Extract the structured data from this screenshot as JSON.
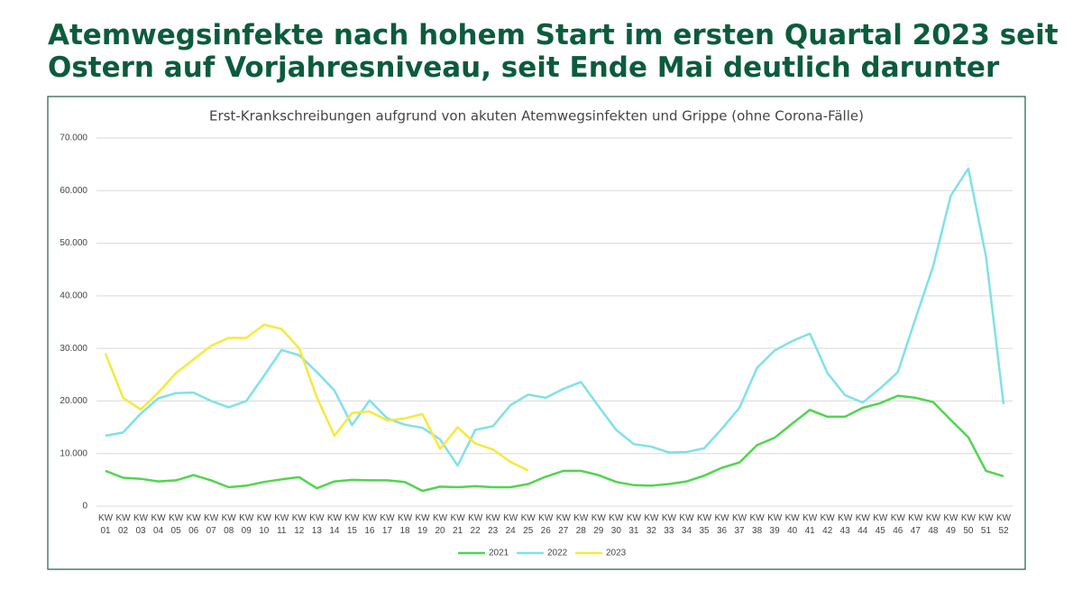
{
  "headline": "Atemwegsinfekte nach hohem Start im ersten Quartal 2023 seit Ostern auf Vorjahresniveau, seit Ende Mai deutlich darunter",
  "chart_data": {
    "type": "line",
    "title": "Erst-Krankschreibungen aufgrund von akuten Atemwegsinfekten und Grippe (ohne Corona-Fälle)",
    "categories": [
      "KW 01",
      "KW 02",
      "KW 03",
      "KW 04",
      "KW 05",
      "KW 06",
      "KW 07",
      "KW 08",
      "KW 09",
      "KW 10",
      "KW 11",
      "KW 12",
      "KW 13",
      "KW 14",
      "KW 15",
      "KW 16",
      "KW 17",
      "KW 18",
      "KW 19",
      "KW 20",
      "KW 21",
      "KW 22",
      "KW 23",
      "KW 24",
      "KW 25",
      "KW 26",
      "KW 27",
      "KW 28",
      "KW 29",
      "KW 30",
      "KW 31",
      "KW 32",
      "KW 33",
      "KW 34",
      "KW 35",
      "KW 36",
      "KW 37",
      "KW 38",
      "KW 39",
      "KW 40",
      "KW 41",
      "KW 42",
      "KW 43",
      "KW 44",
      "KW 45",
      "KW 46",
      "KW 47",
      "KW 48",
      "KW 49",
      "KW 50",
      "KW 51",
      "KW 52"
    ],
    "series": [
      {
        "name": "2021",
        "color": "#4fd64f",
        "values": [
          6700,
          5400,
          5200,
          4700,
          4900,
          5900,
          4900,
          3600,
          3900,
          4600,
          5100,
          5500,
          3400,
          4700,
          5000,
          4900,
          4900,
          4600,
          2900,
          3700,
          3600,
          3800,
          3600,
          3600,
          4200,
          5600,
          6700,
          6700,
          5900,
          4600,
          4000,
          3900,
          4200,
          4700,
          5800,
          7300,
          8300,
          11600,
          13000,
          15700,
          18300,
          17000,
          17000,
          18700,
          19600,
          21000,
          20600,
          19800,
          16400,
          13100,
          6700,
          5700
        ]
      },
      {
        "name": "2022",
        "color": "#7fe1e9",
        "values": [
          13400,
          14000,
          17600,
          20500,
          21500,
          21600,
          20000,
          18800,
          20000,
          24800,
          29700,
          28700,
          25500,
          22000,
          15400,
          20100,
          16700,
          15500,
          14900,
          12700,
          7700,
          14500,
          15200,
          19200,
          21200,
          20600,
          22300,
          23600,
          19000,
          14500,
          11800,
          11300,
          10200,
          10300,
          11000,
          14700,
          18700,
          26300,
          29600,
          31400,
          32800,
          25300,
          21100,
          19700,
          22400,
          25500,
          35700,
          45600,
          59000,
          64200,
          47500,
          19400
        ]
      },
      {
        "name": "2023",
        "color": "#f5ea3a",
        "values": [
          29000,
          20600,
          18400,
          21600,
          25300,
          27900,
          30500,
          32000,
          32000,
          34500,
          33700,
          30000,
          20700,
          13400,
          17700,
          18000,
          16300,
          16700,
          17500,
          10900,
          15000,
          11900,
          10800,
          8400,
          6800,
          null,
          null,
          null,
          null,
          null,
          null,
          null,
          null,
          null,
          null,
          null,
          null,
          null,
          null,
          null,
          null,
          null,
          null,
          null,
          null,
          null,
          null,
          null,
          null,
          null,
          null,
          null
        ]
      }
    ],
    "ylim": [
      0,
      70000
    ],
    "yticks": [
      0,
      {
        "value": 10000,
        "label": "10.000"
      },
      {
        "value": 20000,
        "label": "20.000"
      },
      {
        "value": 30000,
        "label": "30.000"
      },
      {
        "value": 40000,
        "label": "40.000"
      },
      {
        "value": 50000,
        "label": "50.000"
      },
      {
        "value": 60000,
        "label": "60.000"
      },
      {
        "value": 70000,
        "label": "70.000"
      }
    ],
    "grid": true,
    "legend": "bottom"
  }
}
